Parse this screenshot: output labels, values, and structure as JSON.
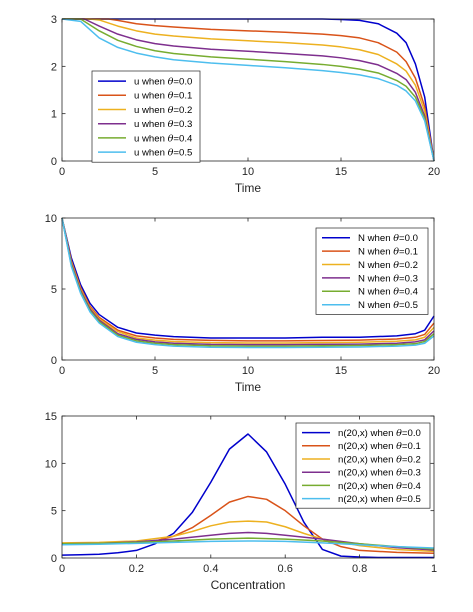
{
  "chart_data": [
    {
      "type": "line",
      "xlabel": "Time",
      "ylabel": "",
      "xlim": [
        0,
        20
      ],
      "ylim": [
        0,
        3
      ],
      "xticks": [
        "0",
        "5",
        "10",
        "15",
        "20"
      ],
      "yticks": [
        "0",
        "1",
        "2",
        "3"
      ],
      "legend_position": "bottom-left",
      "grid": false,
      "series": [
        {
          "name": "u when θ=0.0",
          "color": "#0000cc",
          "x": [
            0,
            2,
            4,
            6,
            8,
            10,
            12,
            14,
            15,
            16,
            17,
            18,
            18.5,
            19,
            19.5,
            20
          ],
          "y": [
            3,
            3,
            3,
            3,
            3,
            3,
            3,
            3,
            2.99,
            2.97,
            2.9,
            2.7,
            2.5,
            2.05,
            1.35,
            0
          ]
        },
        {
          "name": "u when θ=0.1",
          "color": "#d95319",
          "x": [
            0,
            2,
            2.5,
            3,
            4,
            5,
            6,
            8,
            10,
            12,
            14,
            15,
            16,
            17,
            18,
            18.5,
            19,
            19.5,
            20
          ],
          "y": [
            3,
            3,
            3,
            2.97,
            2.9,
            2.86,
            2.83,
            2.78,
            2.75,
            2.72,
            2.68,
            2.65,
            2.6,
            2.5,
            2.3,
            2.1,
            1.75,
            1.15,
            0
          ]
        },
        {
          "name": "u when θ=0.2",
          "color": "#edb120",
          "x": [
            0,
            1.5,
            2,
            3,
            4,
            5,
            6,
            8,
            10,
            12,
            14,
            15,
            16,
            17,
            18,
            18.5,
            19,
            19.5,
            20
          ],
          "y": [
            3,
            3,
            2.98,
            2.85,
            2.75,
            2.68,
            2.64,
            2.58,
            2.54,
            2.5,
            2.45,
            2.41,
            2.35,
            2.25,
            2.05,
            1.9,
            1.6,
            1.05,
            0
          ]
        },
        {
          "name": "u when θ=0.3",
          "color": "#7e2f8e",
          "x": [
            0,
            1.2,
            2,
            3,
            4,
            5,
            6,
            8,
            10,
            12,
            14,
            15,
            16,
            17,
            18,
            18.5,
            19,
            19.5,
            20
          ],
          "y": [
            3,
            3,
            2.85,
            2.68,
            2.56,
            2.48,
            2.43,
            2.36,
            2.32,
            2.27,
            2.22,
            2.18,
            2.12,
            2.03,
            1.85,
            1.72,
            1.45,
            0.95,
            0
          ]
        },
        {
          "name": "u when θ=0.4",
          "color": "#77ac30",
          "x": [
            0,
            1,
            2,
            3,
            4,
            5,
            6,
            8,
            10,
            12,
            14,
            15,
            16,
            17,
            18,
            18.5,
            19,
            19.5,
            20
          ],
          "y": [
            3,
            3,
            2.75,
            2.55,
            2.42,
            2.33,
            2.27,
            2.2,
            2.15,
            2.1,
            2.04,
            2.0,
            1.94,
            1.86,
            1.7,
            1.58,
            1.35,
            0.9,
            0
          ]
        },
        {
          "name": "u when θ=0.5",
          "color": "#4dbeee",
          "x": [
            0,
            1,
            2,
            3,
            4,
            5,
            6,
            8,
            10,
            12,
            14,
            15,
            16,
            17,
            18,
            18.5,
            19,
            19.5,
            20
          ],
          "y": [
            3,
            2.95,
            2.6,
            2.4,
            2.28,
            2.2,
            2.14,
            2.07,
            2.02,
            1.97,
            1.91,
            1.87,
            1.82,
            1.74,
            1.6,
            1.48,
            1.27,
            0.85,
            0
          ]
        }
      ]
    },
    {
      "type": "line",
      "xlabel": "Time",
      "ylabel": "",
      "xlim": [
        0,
        20
      ],
      "ylim": [
        0,
        10
      ],
      "xticks": [
        "0",
        "5",
        "10",
        "15",
        "20"
      ],
      "yticks": [
        "0",
        "5",
        "10"
      ],
      "legend_position": "top-right",
      "grid": false,
      "series": [
        {
          "name": "N when θ=0.0",
          "color": "#0000cc",
          "x": [
            0,
            0.5,
            1,
            1.5,
            2,
            3,
            4,
            5,
            6,
            8,
            10,
            12,
            14,
            16,
            18,
            19,
            19.5,
            20
          ],
          "y": [
            10,
            7.2,
            5.3,
            4.0,
            3.2,
            2.3,
            1.9,
            1.75,
            1.65,
            1.55,
            1.55,
            1.55,
            1.6,
            1.6,
            1.7,
            1.85,
            2.1,
            3.1
          ]
        },
        {
          "name": "N when θ=0.1",
          "color": "#d95319",
          "x": [
            0,
            0.5,
            1,
            1.5,
            2,
            3,
            4,
            5,
            6,
            8,
            10,
            12,
            14,
            16,
            18,
            19,
            19.5,
            20
          ],
          "y": [
            10,
            7.0,
            5.1,
            3.8,
            3.0,
            2.1,
            1.7,
            1.55,
            1.45,
            1.38,
            1.35,
            1.35,
            1.37,
            1.4,
            1.48,
            1.6,
            1.8,
            2.6
          ]
        },
        {
          "name": "N when θ=0.2",
          "color": "#edb120",
          "x": [
            0,
            0.5,
            1,
            1.5,
            2,
            3,
            4,
            5,
            6,
            8,
            10,
            12,
            14,
            16,
            18,
            19,
            19.5,
            20
          ],
          "y": [
            10,
            6.9,
            5.0,
            3.7,
            2.9,
            2.0,
            1.55,
            1.4,
            1.3,
            1.22,
            1.2,
            1.2,
            1.22,
            1.25,
            1.32,
            1.42,
            1.6,
            2.3
          ]
        },
        {
          "name": "N when θ=0.3",
          "color": "#7e2f8e",
          "x": [
            0,
            0.5,
            1,
            1.5,
            2,
            3,
            4,
            5,
            6,
            8,
            10,
            12,
            14,
            16,
            18,
            19,
            19.5,
            20
          ],
          "y": [
            10,
            6.8,
            4.9,
            3.6,
            2.8,
            1.85,
            1.45,
            1.28,
            1.18,
            1.1,
            1.08,
            1.08,
            1.1,
            1.12,
            1.18,
            1.28,
            1.42,
            2.05
          ]
        },
        {
          "name": "N when θ=0.4",
          "color": "#77ac30",
          "x": [
            0,
            0.5,
            1,
            1.5,
            2,
            3,
            4,
            5,
            6,
            8,
            10,
            12,
            14,
            16,
            18,
            19,
            19.5,
            20
          ],
          "y": [
            10,
            6.7,
            4.8,
            3.5,
            2.7,
            1.75,
            1.35,
            1.18,
            1.08,
            1.0,
            0.98,
            0.98,
            1.0,
            1.02,
            1.08,
            1.15,
            1.3,
            1.85
          ]
        },
        {
          "name": "N when θ=0.5",
          "color": "#4dbeee",
          "x": [
            0,
            0.5,
            1,
            1.5,
            2,
            3,
            4,
            5,
            6,
            8,
            10,
            12,
            14,
            16,
            18,
            19,
            19.5,
            20
          ],
          "y": [
            10,
            6.6,
            4.7,
            3.4,
            2.6,
            1.65,
            1.25,
            1.08,
            0.98,
            0.9,
            0.88,
            0.88,
            0.9,
            0.92,
            0.98,
            1.05,
            1.18,
            1.7
          ]
        }
      ]
    },
    {
      "type": "line",
      "xlabel": "Concentration",
      "ylabel": "",
      "xlim": [
        0,
        1
      ],
      "ylim": [
        0,
        15
      ],
      "xticks": [
        "0",
        "0.2",
        "0.4",
        "0.6",
        "0.8",
        "1"
      ],
      "yticks": [
        "0",
        "5",
        "10",
        "15"
      ],
      "legend_position": "top-right",
      "grid": false,
      "series": [
        {
          "name": "n(20,x) when θ=0.0",
          "color": "#0000cc",
          "x": [
            0,
            0.05,
            0.1,
            0.15,
            0.2,
            0.25,
            0.3,
            0.35,
            0.4,
            0.45,
            0.5,
            0.55,
            0.6,
            0.65,
            0.7,
            0.75,
            0.8,
            0.85,
            0.9,
            0.95,
            1
          ],
          "y": [
            0.3,
            0.35,
            0.4,
            0.55,
            0.8,
            1.5,
            2.6,
            4.8,
            8.0,
            11.5,
            13.1,
            11.2,
            7.8,
            3.8,
            0.9,
            0.2,
            0.1,
            0.05,
            0.05,
            0.05,
            0.05
          ]
        },
        {
          "name": "n(20,x) when θ=0.1",
          "color": "#d95319",
          "x": [
            0,
            0.1,
            0.2,
            0.25,
            0.3,
            0.35,
            0.4,
            0.45,
            0.5,
            0.55,
            0.6,
            0.65,
            0.7,
            0.75,
            0.8,
            0.9,
            1
          ],
          "y": [
            1.5,
            1.5,
            1.6,
            1.8,
            2.3,
            3.2,
            4.5,
            5.9,
            6.5,
            6.2,
            5.0,
            3.4,
            2.0,
            1.2,
            0.8,
            0.6,
            0.5
          ]
        },
        {
          "name": "n(20,x) when θ=0.2",
          "color": "#edb120",
          "x": [
            0,
            0.1,
            0.2,
            0.3,
            0.35,
            0.4,
            0.45,
            0.5,
            0.55,
            0.6,
            0.65,
            0.7,
            0.8,
            0.9,
            1
          ],
          "y": [
            1.6,
            1.65,
            1.8,
            2.3,
            2.8,
            3.4,
            3.8,
            3.9,
            3.8,
            3.3,
            2.6,
            2.0,
            1.3,
            0.9,
            0.7
          ]
        },
        {
          "name": "n(20,x) when θ=0.3",
          "color": "#7e2f8e",
          "x": [
            0,
            0.1,
            0.2,
            0.3,
            0.4,
            0.45,
            0.5,
            0.55,
            0.6,
            0.7,
            0.8,
            0.9,
            1
          ],
          "y": [
            1.5,
            1.55,
            1.7,
            2.0,
            2.4,
            2.6,
            2.7,
            2.6,
            2.4,
            2.0,
            1.5,
            1.1,
            0.85
          ]
        },
        {
          "name": "n(20,x) when θ=0.4",
          "color": "#77ac30",
          "x": [
            0,
            0.1,
            0.2,
            0.3,
            0.4,
            0.5,
            0.6,
            0.7,
            0.8,
            0.9,
            1
          ],
          "y": [
            1.5,
            1.55,
            1.65,
            1.8,
            2.0,
            2.1,
            2.0,
            1.8,
            1.5,
            1.2,
            0.95
          ]
        },
        {
          "name": "n(20,x) when θ=0.5",
          "color": "#4dbeee",
          "x": [
            0,
            0.1,
            0.2,
            0.3,
            0.4,
            0.5,
            0.6,
            0.7,
            0.8,
            0.9,
            1
          ],
          "y": [
            1.4,
            1.45,
            1.55,
            1.65,
            1.75,
            1.8,
            1.75,
            1.6,
            1.4,
            1.2,
            1.05
          ]
        }
      ]
    }
  ]
}
